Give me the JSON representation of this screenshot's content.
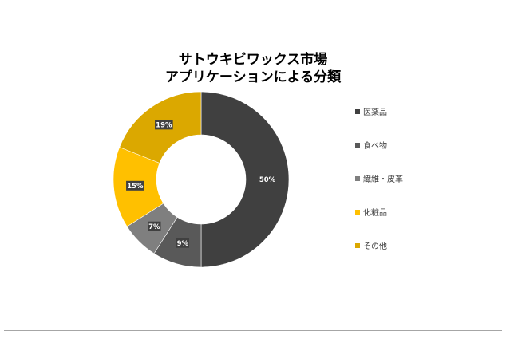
{
  "chart_data": {
    "type": "donut",
    "title_lines": [
      "サトウキビワックス市場",
      "アプリケーションによる分類"
    ],
    "categories": [
      "医薬品",
      "食べ物",
      "繊維・皮革",
      "化粧品",
      "その他"
    ],
    "values": [
      50,
      9,
      7,
      15,
      19
    ],
    "data_labels": [
      "50%",
      "9%",
      "7%",
      "15%",
      "19%"
    ],
    "colors": [
      "#404040",
      "#595959",
      "#7f7f7f",
      "#ffc000",
      "#dba800"
    ],
    "legend_position": "right"
  }
}
